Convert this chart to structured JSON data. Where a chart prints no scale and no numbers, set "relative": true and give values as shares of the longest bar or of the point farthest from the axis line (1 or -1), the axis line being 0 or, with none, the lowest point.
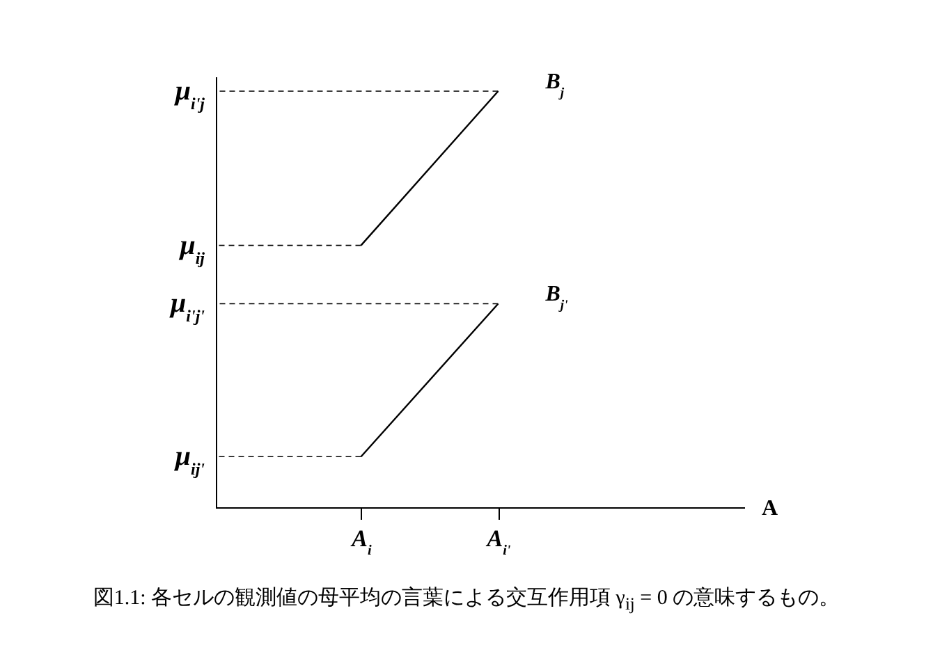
{
  "chart_data": {
    "type": "line",
    "relative": true,
    "categories": [
      "A$_{i}$",
      "A$_{i'}$"
    ],
    "series": [
      {
        "name": "B$_{j}$",
        "color": "#000000",
        "values": [
          0.63,
          1
        ]
      },
      {
        "name": "B$_{j'}$",
        "color": "#000000",
        "values": [
          0.123,
          0.49
        ]
      }
    ],
    "ref_lines": [
      {
        "axis": "y",
        "value": 1,
        "label": "μ$_{i'j}$",
        "line_style": "dashed"
      },
      {
        "axis": "y",
        "value": 0.63,
        "label": "μ$_{ij}$",
        "line_style": "dashed"
      },
      {
        "axis": "y",
        "value": 0.49,
        "label": "μ$_{i'j'}$",
        "line_style": "dashed"
      },
      {
        "axis": "y",
        "value": 0.123,
        "label": "μ$_{ij'}$",
        "line_style": "dashed"
      }
    ],
    "annotations": [
      "A",
      "図1.1: 各セルの観測値の母平均の言葉による交互作用項 γ$_{ij}$ = 0 の意味するもの。"
    ],
    "marker": "none",
    "line_style": "solid"
  }
}
